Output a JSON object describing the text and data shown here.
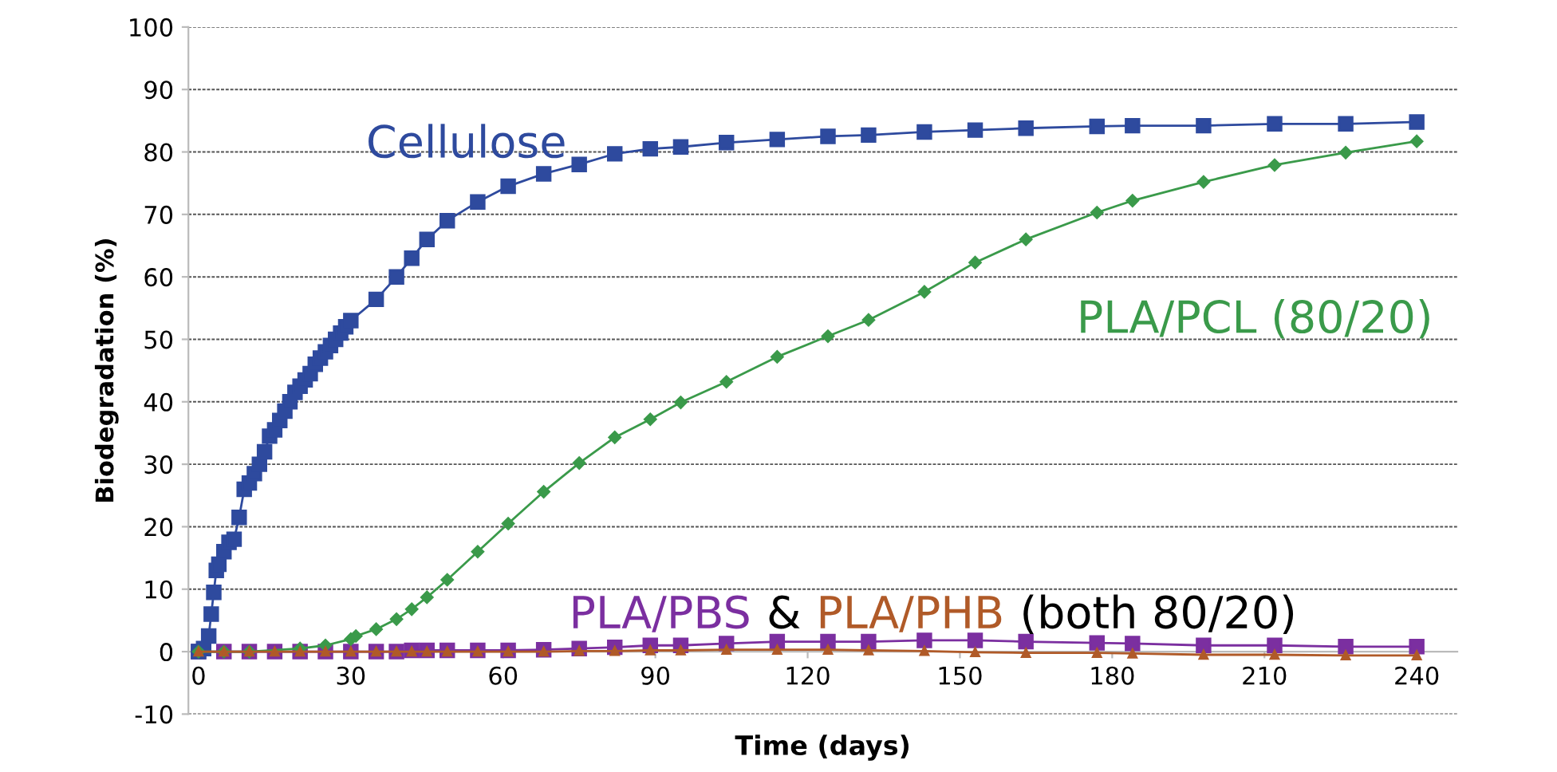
{
  "chart_data": {
    "type": "line",
    "xlabel": "Time (days)",
    "ylabel": "Biodegradation (%)",
    "xlim": [
      -2,
      248
    ],
    "xticks": [
      0,
      30,
      60,
      90,
      120,
      150,
      180,
      210,
      240
    ],
    "ylim": [
      -10,
      100
    ],
    "yticks": [
      -10,
      0,
      10,
      20,
      30,
      40,
      50,
      60,
      70,
      80,
      90,
      100
    ],
    "grid": "y",
    "line_style": "solid",
    "series": [
      {
        "name": "Cellulose",
        "color": "#2e4a9e",
        "marker": "square",
        "x": [
          0,
          1,
          2,
          2.5,
          3,
          3.5,
          4,
          5,
          6,
          7,
          8,
          9,
          10,
          11,
          12,
          13,
          14,
          15,
          16,
          17,
          18,
          19,
          20,
          21,
          22,
          23,
          24,
          25,
          26,
          27,
          28,
          29,
          30,
          35,
          39,
          42,
          45,
          49,
          55,
          61,
          68,
          75,
          82,
          89,
          95,
          104,
          114,
          124,
          132,
          143,
          153,
          163,
          177,
          184,
          198,
          212,
          226,
          240
        ],
        "values": [
          0,
          0.5,
          2.5,
          6,
          9.5,
          13,
          14,
          16,
          17.5,
          18,
          21.5,
          26,
          27,
          28.5,
          30,
          32,
          34.5,
          35.5,
          37,
          38.5,
          40,
          41.5,
          42.5,
          43.5,
          44.5,
          46,
          47,
          48,
          49,
          50,
          51,
          52,
          53,
          56.4,
          60,
          63,
          66,
          69,
          72,
          74.5,
          76.5,
          78,
          79.7,
          80.5,
          80.8,
          81.5,
          82,
          82.5,
          82.7,
          83.2,
          83.5,
          83.8,
          84.1,
          84.2,
          84.2,
          84.5,
          84.5,
          84.8
        ]
      },
      {
        "name": "PLA/PCL (80/20)",
        "color": "#3a9a4a",
        "marker": "diamond",
        "x": [
          0,
          5,
          10,
          20,
          25,
          30,
          31,
          35,
          39,
          42,
          45,
          49,
          55,
          61,
          68,
          75,
          82,
          89,
          95,
          104,
          114,
          124,
          132,
          143,
          153,
          163,
          177,
          184,
          198,
          212,
          226,
          240
        ],
        "values": [
          0,
          0,
          0,
          0.5,
          1,
          2,
          2.5,
          3.6,
          5.2,
          6.8,
          8.7,
          11.5,
          16,
          20.5,
          25.6,
          30.2,
          34.3,
          37.2,
          39.9,
          43.2,
          47.2,
          50.5,
          53.1,
          57.6,
          62.3,
          66,
          70.3,
          72.2,
          75.2,
          77.9,
          79.9,
          81.7
        ]
      },
      {
        "name": "PLA/PBS",
        "color": "#7b2fa0",
        "marker": "square",
        "x": [
          0,
          5,
          10,
          15,
          20,
          25,
          30,
          35,
          39,
          42,
          45,
          49,
          55,
          61,
          68,
          75,
          82,
          89,
          95,
          104,
          114,
          124,
          132,
          143,
          153,
          163,
          177,
          184,
          198,
          212,
          226,
          240
        ],
        "values": [
          0,
          0,
          0,
          0,
          0,
          0,
          0,
          0,
          0,
          0.2,
          0.2,
          0.2,
          0.2,
          0.2,
          0.3,
          0.5,
          0.7,
          1,
          1,
          1.3,
          1.6,
          1.6,
          1.6,
          1.8,
          1.8,
          1.6,
          1.4,
          1.3,
          1,
          1,
          0.8,
          0.8
        ]
      },
      {
        "name": "PLA/PHB",
        "color": "#b05a28",
        "marker": "triangle",
        "x": [
          0,
          5,
          10,
          15,
          20,
          25,
          30,
          35,
          39,
          42,
          45,
          49,
          55,
          61,
          68,
          75,
          82,
          89,
          95,
          104,
          114,
          124,
          132,
          143,
          153,
          163,
          177,
          184,
          198,
          212,
          226,
          240
        ],
        "values": [
          0,
          0,
          0,
          0,
          0,
          0,
          0,
          0,
          0,
          0,
          0,
          0,
          0,
          0,
          0,
          0.1,
          0.1,
          0.2,
          0.2,
          0.3,
          0.3,
          0.3,
          0.2,
          0.1,
          -0.1,
          -0.2,
          -0.2,
          -0.3,
          -0.5,
          -0.5,
          -0.6,
          -0.6
        ]
      }
    ],
    "annotations": [
      "&",
      "(both 80/20)"
    ]
  }
}
